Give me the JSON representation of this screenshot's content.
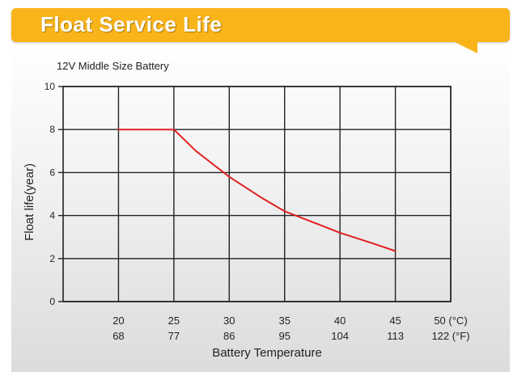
{
  "header": {
    "title": "Float Service Life"
  },
  "chart_data": {
    "type": "line",
    "subtitle": "12V Middle Size Battery",
    "xlabel": "Battery Temperature",
    "ylabel": "Float life(year)",
    "xlim": [
      15,
      50
    ],
    "ylim": [
      0,
      10
    ],
    "x_ticks": [
      {
        "c": 20,
        "c_label": "20",
        "f_label": "68"
      },
      {
        "c": 25,
        "c_label": "25",
        "f_label": "77"
      },
      {
        "c": 30,
        "c_label": "30",
        "f_label": "86"
      },
      {
        "c": 35,
        "c_label": "35",
        "f_label": "95"
      },
      {
        "c": 40,
        "c_label": "40",
        "f_label": "104"
      },
      {
        "c": 45,
        "c_label": "45",
        "f_label": "113"
      },
      {
        "c": 50,
        "c_label": "50 (°C)",
        "f_label": "122 (°F)"
      }
    ],
    "y_ticks": [
      {
        "v": 0,
        "label": "0"
      },
      {
        "v": 2,
        "label": "2"
      },
      {
        "v": 4,
        "label": "4"
      },
      {
        "v": 6,
        "label": "6"
      },
      {
        "v": 8,
        "label": "8"
      },
      {
        "v": 10,
        "label": "10"
      }
    ],
    "grid": true,
    "series": [
      {
        "color": "#e02020",
        "x": [
          20,
          25,
          27,
          30,
          33,
          35,
          38,
          40,
          43,
          45
        ],
        "y": [
          8.0,
          8.0,
          7.0,
          5.8,
          4.8,
          4.2,
          3.6,
          3.2,
          2.7,
          2.35
        ]
      }
    ]
  }
}
